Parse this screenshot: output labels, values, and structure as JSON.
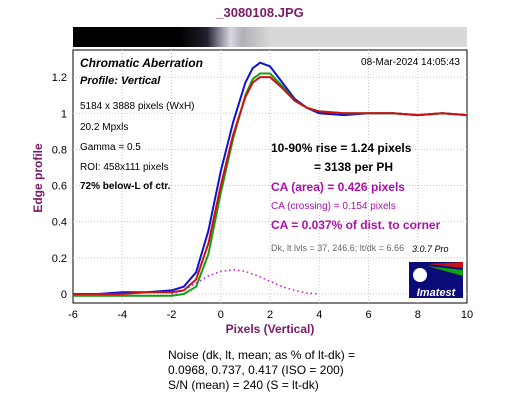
{
  "chart_data": {
    "type": "line",
    "title": "_3080108.JPG",
    "xlabel": "Pixels (Vertical)",
    "ylabel": "Edge profile",
    "xlim": [
      -6,
      10
    ],
    "ylim": [
      -0.05,
      1.35
    ],
    "x_ticks": [
      "-6",
      "-4",
      "-2",
      "0",
      "2",
      "4",
      "6",
      "8",
      "10"
    ],
    "y_ticks": [
      "0",
      "0.2",
      "0.4",
      "0.6",
      "0.8",
      "1",
      "1.2"
    ],
    "grid": true,
    "series": [
      {
        "color": "#1010d0",
        "x": [
          -6,
          -5,
          -4,
          -3,
          -2,
          -1.5,
          -1,
          -0.5,
          0,
          0.5,
          1,
          1.3,
          1.6,
          2,
          2.5,
          3,
          3.5,
          4,
          5,
          6,
          7,
          8,
          9,
          10
        ],
        "y": [
          0.0,
          0.0,
          0.01,
          0.01,
          0.02,
          0.04,
          0.12,
          0.35,
          0.68,
          0.95,
          1.17,
          1.25,
          1.28,
          1.26,
          1.17,
          1.08,
          1.03,
          1.0,
          0.99,
          1.0,
          1.0,
          0.99,
          1.0,
          0.99
        ]
      },
      {
        "color": "#10a010",
        "x": [
          -6,
          -5,
          -4,
          -3,
          -2,
          -1.5,
          -1,
          -0.5,
          0,
          0.5,
          1,
          1.3,
          1.6,
          2,
          2.5,
          3,
          3.5,
          4,
          5,
          6,
          7,
          8,
          9,
          10
        ],
        "y": [
          -0.01,
          -0.01,
          -0.01,
          -0.01,
          -0.01,
          0.0,
          0.04,
          0.22,
          0.56,
          0.86,
          1.1,
          1.19,
          1.22,
          1.22,
          1.15,
          1.07,
          1.03,
          1.01,
          1.0,
          1.0,
          1.0,
          0.99,
          1.0,
          0.99
        ]
      },
      {
        "color": "#d01010",
        "x": [
          -6,
          -5,
          -4,
          -3,
          -2,
          -1.5,
          -1,
          -0.5,
          0,
          0.5,
          1,
          1.3,
          1.6,
          2,
          2.5,
          3,
          3.5,
          4,
          5,
          6,
          7,
          8,
          9,
          10
        ],
        "y": [
          0.0,
          0.0,
          0.0,
          0.01,
          0.01,
          0.02,
          0.08,
          0.28,
          0.6,
          0.88,
          1.09,
          1.17,
          1.2,
          1.2,
          1.14,
          1.07,
          1.03,
          1.01,
          1.0,
          1.0,
          1.0,
          0.99,
          1.0,
          0.99
        ]
      },
      {
        "color": "#cc10cc",
        "style": "dotted",
        "x": [
          -2,
          -1.5,
          -1,
          -0.5,
          0,
          0.5,
          1,
          1.5,
          2,
          2.5,
          3,
          3.5,
          4
        ],
        "y": [
          0.0,
          0.02,
          0.06,
          0.1,
          0.125,
          0.135,
          0.125,
          0.1,
          0.07,
          0.04,
          0.02,
          0.005,
          0.0
        ]
      }
    ],
    "header_left": [
      "Chromatic Aberration",
      "Profile: Vertical"
    ],
    "timestamp": "08-Mar-2024 14:05:43",
    "info_lines": [
      "5184 x 3888 pixels (WxH)",
      "20.2 Mpxls",
      "Gamma = 0.5",
      "ROI: 458x111 pixels",
      "72% below-L of ctr."
    ],
    "rise_line1": "10-90% rise = 1.24 pixels",
    "rise_line2": "= 3138 per PH",
    "ca_area": "CA (area) = 0.426 pixels",
    "ca_crossing": "CA (crossing) = 0.154 pixels",
    "ca_dist": "CA = 0.037% of dist. to corner",
    "dk_levels": "Dk, lt lvls = 37, 246.6;  lt/dk = 6.66",
    "version": "3.0.7  Pro",
    "logo_text": "Imatest",
    "noise_line1": "Noise (dk, lt, mean; as % of lt-dk) =",
    "noise_line2": "0.0968,  0.737,  0.417  (ISO =  200)",
    "sn_line": "S/N (mean) = 240  (S = lt-dk)",
    "colors": {
      "axis_label": "#7a1a6a",
      "ca_text": "#aa10aa",
      "logo_bg": "#0a0a78"
    }
  }
}
